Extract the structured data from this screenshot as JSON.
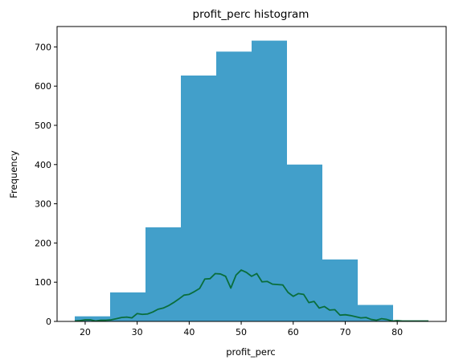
{
  "chart_data": {
    "type": "bar",
    "title": "profit_perc histogram",
    "xlabel": "profit_perc",
    "ylabel": "Frequency",
    "xlim": [
      14.6,
      89.4
    ],
    "ylim": [
      0,
      752
    ],
    "xticks": [
      20,
      30,
      40,
      50,
      60,
      70,
      80
    ],
    "yticks": [
      0,
      100,
      200,
      300,
      400,
      500,
      600,
      700
    ],
    "grid": false,
    "histogram": {
      "color": "#429fca",
      "bins": [
        {
          "x0": 18.0,
          "x1": 24.8,
          "count": 13
        },
        {
          "x0": 24.8,
          "x1": 31.6,
          "count": 74
        },
        {
          "x0": 31.6,
          "x1": 38.4,
          "count": 240
        },
        {
          "x0": 38.4,
          "x1": 45.2,
          "count": 627
        },
        {
          "x0": 45.2,
          "x1": 52.0,
          "count": 688
        },
        {
          "x0": 52.0,
          "x1": 58.8,
          "count": 716
        },
        {
          "x0": 58.8,
          "x1": 65.6,
          "count": 400
        },
        {
          "x0": 65.6,
          "x1": 72.4,
          "count": 158
        },
        {
          "x0": 72.4,
          "x1": 79.2,
          "count": 42
        },
        {
          "x0": 79.2,
          "x1": 86.0,
          "count": 2
        }
      ]
    },
    "overlay_line": {
      "color": "#0a6e3c",
      "points": [
        [
          18,
          1
        ],
        [
          19,
          2
        ],
        [
          20,
          4
        ],
        [
          21,
          4
        ],
        [
          22,
          1
        ],
        [
          23,
          3
        ],
        [
          24,
          3
        ],
        [
          25,
          4
        ],
        [
          26,
          7
        ],
        [
          27,
          10
        ],
        [
          28,
          11
        ],
        [
          29,
          9
        ],
        [
          30,
          20
        ],
        [
          31,
          18
        ],
        [
          32,
          19
        ],
        [
          33,
          24
        ],
        [
          34,
          31
        ],
        [
          35,
          34
        ],
        [
          36,
          40
        ],
        [
          37,
          48
        ],
        [
          38,
          57
        ],
        [
          39,
          67
        ],
        [
          40,
          69
        ],
        [
          41,
          76
        ],
        [
          42,
          84
        ],
        [
          43,
          108
        ],
        [
          44,
          109
        ],
        [
          45,
          122
        ],
        [
          46,
          121
        ],
        [
          47,
          115
        ],
        [
          48,
          85
        ],
        [
          49,
          118
        ],
        [
          50,
          131
        ],
        [
          51,
          125
        ],
        [
          52,
          115
        ],
        [
          53,
          122
        ],
        [
          54,
          101
        ],
        [
          55,
          102
        ],
        [
          56,
          95
        ],
        [
          57,
          94
        ],
        [
          58,
          93
        ],
        [
          59,
          74
        ],
        [
          60,
          64
        ],
        [
          61,
          71
        ],
        [
          62,
          69
        ],
        [
          63,
          48
        ],
        [
          64,
          51
        ],
        [
          65,
          34
        ],
        [
          66,
          38
        ],
        [
          67,
          29
        ],
        [
          68,
          30
        ],
        [
          69,
          16
        ],
        [
          70,
          17
        ],
        [
          71,
          15
        ],
        [
          72,
          12
        ],
        [
          73,
          9
        ],
        [
          74,
          10
        ],
        [
          75,
          5
        ],
        [
          76,
          3
        ],
        [
          77,
          7
        ],
        [
          78,
          5
        ],
        [
          79,
          1
        ],
        [
          80,
          2
        ],
        [
          81,
          1
        ],
        [
          82,
          1
        ],
        [
          83,
          1
        ],
        [
          84,
          1
        ],
        [
          85,
          1
        ],
        [
          86,
          1
        ]
      ]
    }
  }
}
